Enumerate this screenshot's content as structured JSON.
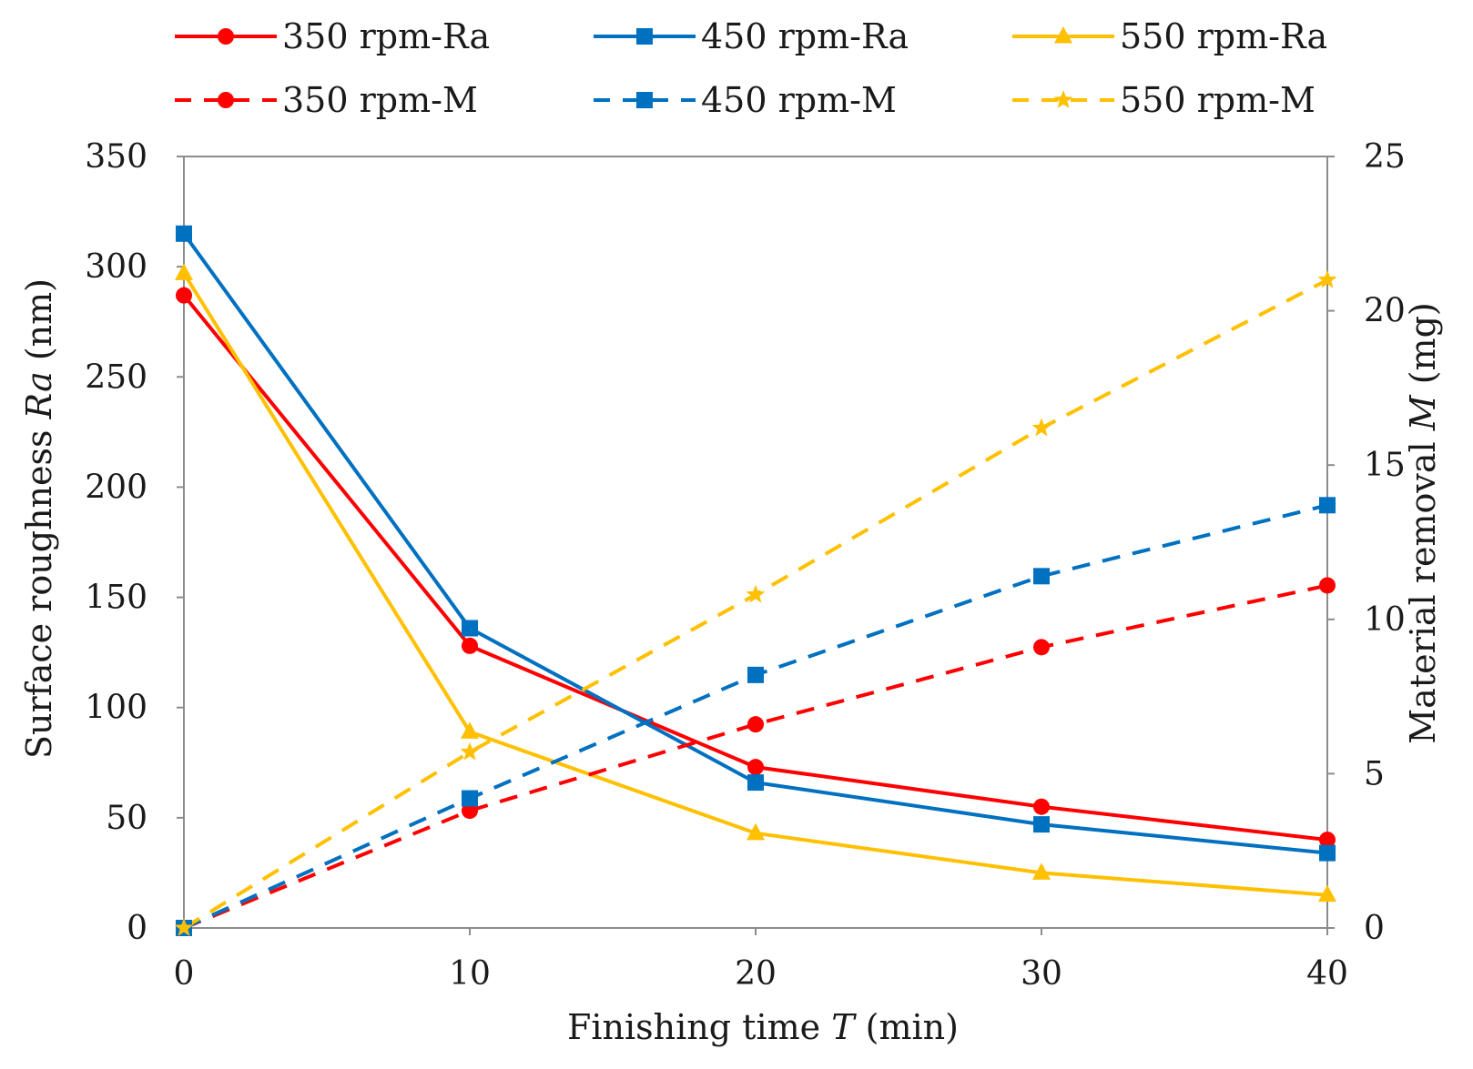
{
  "chart_data": {
    "type": "line",
    "x_label_main": "Finishing time ",
    "x_label_var": "T",
    "x_label_unit": " (min)",
    "y_label_main": "Surface roughness ",
    "y_label_var": "Ra",
    "y_label_unit": " (nm)",
    "y2_label_main": "Material removal ",
    "y2_label_var": "M",
    "y2_label_unit": " (mg)",
    "xlim": [
      0,
      40
    ],
    "ylim": [
      0,
      350
    ],
    "y2lim": [
      0,
      25
    ],
    "x_ticks": [
      "0",
      "10",
      "20",
      "30",
      "40"
    ],
    "y_ticks": [
      "0",
      "50",
      "100",
      "150",
      "200",
      "250",
      "300",
      "350"
    ],
    "y2_ticks": [
      "0",
      "5",
      "10",
      "15",
      "20",
      "25"
    ],
    "x": [
      0,
      10,
      20,
      30,
      40
    ],
    "series": [
      {
        "name": "350 rpm-Ra",
        "axis": "left",
        "color": "#ff0000",
        "dash": "solid",
        "marker": "circle",
        "values": [
          287,
          128,
          73,
          55,
          40
        ]
      },
      {
        "name": "450 rpm-Ra",
        "axis": "left",
        "color": "#0070c0",
        "dash": "solid",
        "marker": "square",
        "values": [
          315,
          136,
          66,
          47,
          34
        ]
      },
      {
        "name": "550 rpm-Ra",
        "axis": "left",
        "color": "#ffc000",
        "dash": "solid",
        "marker": "triangle",
        "values": [
          297,
          89,
          43,
          25,
          15
        ]
      },
      {
        "name": "350 rpm-M",
        "axis": "right",
        "color": "#ff0000",
        "dash": "dashed",
        "marker": "circle",
        "values": [
          0,
          3.8,
          6.6,
          9.1,
          11.1
        ]
      },
      {
        "name": "450 rpm-M",
        "axis": "right",
        "color": "#0070c0",
        "dash": "dashed",
        "marker": "square",
        "values": [
          0,
          4.2,
          8.2,
          11.4,
          13.7
        ]
      },
      {
        "name": "550 rpm-M",
        "axis": "right",
        "color": "#ffc000",
        "dash": "dashed",
        "marker": "star",
        "values": [
          0,
          5.7,
          10.8,
          16.2,
          21.0
        ]
      }
    ],
    "legend_position": "top"
  }
}
